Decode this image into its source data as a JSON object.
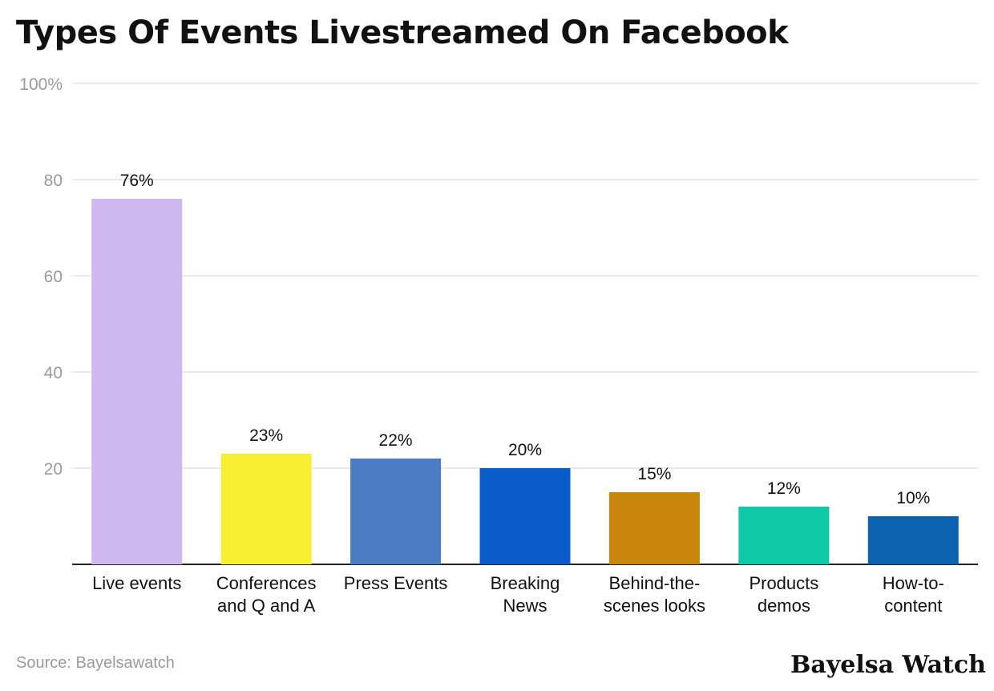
{
  "chart_data": {
    "type": "bar",
    "title": "Types Of Events Livestreamed On Facebook",
    "categories": [
      [
        "Live events"
      ],
      [
        "Conferences",
        "and Q and A"
      ],
      [
        "Press Events"
      ],
      [
        "Breaking",
        "News"
      ],
      [
        "Behind-the-",
        "scenes looks"
      ],
      [
        "Products",
        "demos"
      ],
      [
        "How-to-",
        "content"
      ]
    ],
    "values": [
      76,
      23,
      22,
      20,
      15,
      12,
      10
    ],
    "value_labels": [
      "76%",
      "23%",
      "22%",
      "20%",
      "15%",
      "12%",
      "10%"
    ],
    "colors": [
      "#cdb9f0",
      "#f9ef32",
      "#4c7dc4",
      "#0b5ccb",
      "#c8860c",
      "#0fc9a6",
      "#0d62b0"
    ],
    "ylim": [
      0,
      100
    ],
    "y_ticks": [
      {
        "value": 20,
        "label": "20"
      },
      {
        "value": 40,
        "label": "40"
      },
      {
        "value": 60,
        "label": "60"
      },
      {
        "value": 80,
        "label": "80"
      },
      {
        "value": 100,
        "label": "100%"
      }
    ],
    "grid": true,
    "xlabel": "",
    "ylabel": ""
  },
  "footer": {
    "source": "Source: Bayelsawatch",
    "brand": "Bayelsa Watch"
  },
  "colors": {
    "grid": "#e3e3e3",
    "axis": "#222222",
    "tick_label": "#9a9a9a",
    "text": "#111111"
  }
}
